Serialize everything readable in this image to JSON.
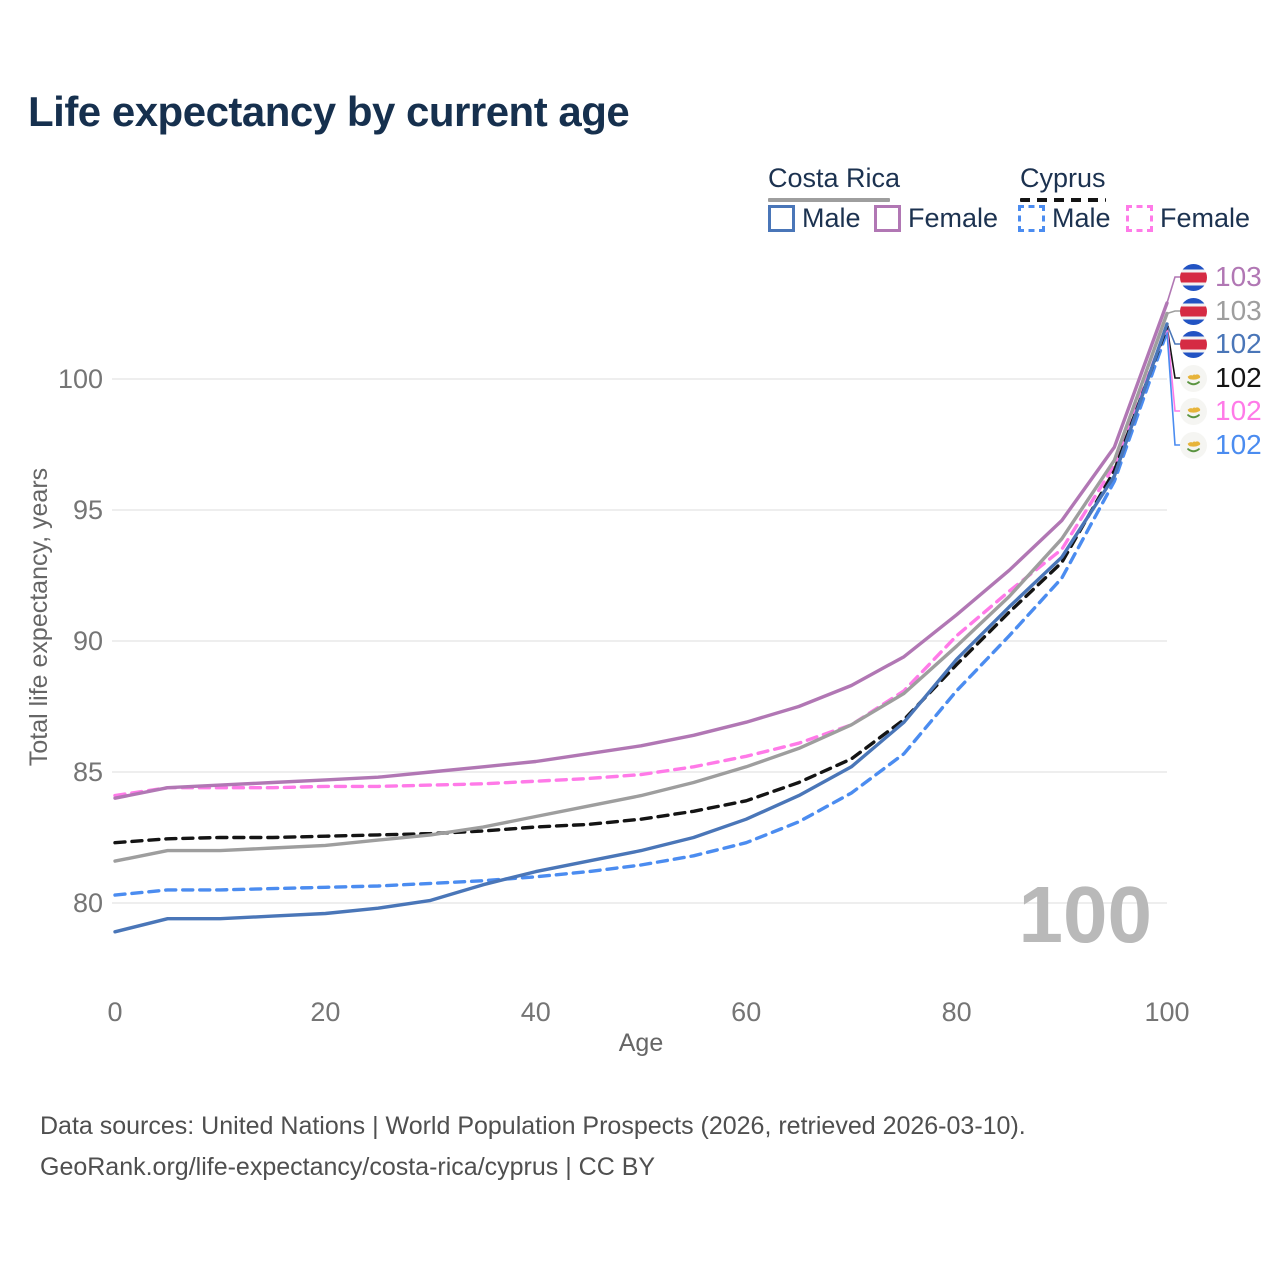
{
  "title": "Life expectancy by current age",
  "watermark": "100",
  "legend": {
    "groups": [
      {
        "label": "Costa Rica",
        "line_style": "solid",
        "underline_color": "#9e9e9e"
      },
      {
        "label": "Cyprus",
        "line_style": "dashed",
        "underline_color": "#141414"
      }
    ],
    "items": [
      {
        "label": "Male",
        "color": "#4a76b8",
        "style": "solid"
      },
      {
        "label": "Female",
        "color": "#b177b4",
        "style": "solid"
      },
      {
        "label": "Male",
        "color": "#4b8cf0",
        "style": "dashed"
      },
      {
        "label": "Female",
        "color": "#ff7ae8",
        "style": "dashed"
      }
    ]
  },
  "chart_data": {
    "type": "line",
    "title": "Life expectancy by current age",
    "xlabel": "Age",
    "ylabel": "Total life expectancy, years",
    "xlim": [
      0,
      100
    ],
    "ylim": [
      78,
      103.5
    ],
    "xticks": [
      0,
      20,
      40,
      60,
      80,
      100
    ],
    "yticks": [
      80,
      85,
      90,
      95,
      100
    ],
    "grid": "horizontal",
    "legend_position": "top-right",
    "x": [
      0,
      5,
      10,
      15,
      20,
      25,
      30,
      35,
      40,
      45,
      50,
      55,
      60,
      65,
      70,
      75,
      80,
      85,
      90,
      95,
      100
    ],
    "series": [
      {
        "id": "costa-rica-female",
        "name": "Costa Rica Female",
        "country": "Costa Rica",
        "color": "#b177b4",
        "dash": false,
        "flag": "costa-rica",
        "end_label": "103",
        "values": [
          84.0,
          84.4,
          84.5,
          84.6,
          84.7,
          84.8,
          85.0,
          85.2,
          85.4,
          85.7,
          86.0,
          86.4,
          86.9,
          87.5,
          88.3,
          89.4,
          91.0,
          92.7,
          94.6,
          97.4,
          102.9
        ]
      },
      {
        "id": "costa-rica-total",
        "name": "Costa Rica (both sexes)",
        "country": "Costa Rica",
        "color": "#9e9e9e",
        "dash": false,
        "flag": "costa-rica",
        "end_label": "103",
        "values": [
          81.6,
          82.0,
          82.0,
          82.1,
          82.2,
          82.4,
          82.6,
          82.9,
          83.3,
          83.7,
          84.1,
          84.6,
          85.2,
          85.9,
          86.8,
          88.0,
          89.8,
          91.7,
          93.9,
          96.9,
          102.5
        ]
      },
      {
        "id": "costa-rica-male",
        "name": "Costa Rica Male",
        "country": "Costa Rica",
        "color": "#4a76b8",
        "dash": false,
        "flag": "costa-rica",
        "end_label": "102",
        "values": [
          78.9,
          79.4,
          79.4,
          79.5,
          79.6,
          79.8,
          80.1,
          80.7,
          81.2,
          81.6,
          82.0,
          82.5,
          83.2,
          84.1,
          85.2,
          86.9,
          89.3,
          91.3,
          93.2,
          96.3,
          102.1
        ]
      },
      {
        "id": "cyprus-total",
        "name": "Cyprus (both sexes)",
        "country": "Cyprus",
        "color": "#141414",
        "dash": true,
        "flag": "cyprus",
        "end_label": "102",
        "values": [
          82.3,
          82.45,
          82.5,
          82.5,
          82.55,
          82.6,
          82.65,
          82.75,
          82.9,
          83.0,
          83.2,
          83.5,
          83.9,
          84.6,
          85.5,
          87.0,
          89.1,
          91.1,
          93.0,
          96.5,
          102.0
        ]
      },
      {
        "id": "cyprus-female",
        "name": "Cyprus Female",
        "country": "Cyprus",
        "color": "#ff7ae8",
        "dash": true,
        "flag": "cyprus",
        "end_label": "102",
        "values": [
          84.1,
          84.4,
          84.4,
          84.4,
          84.45,
          84.45,
          84.5,
          84.55,
          84.65,
          84.75,
          84.9,
          85.2,
          85.6,
          86.1,
          86.8,
          88.1,
          90.2,
          91.9,
          93.5,
          96.7,
          102.0
        ]
      },
      {
        "id": "cyprus-male",
        "name": "Cyprus Male",
        "country": "Cyprus",
        "color": "#4b8cf0",
        "dash": true,
        "flag": "cyprus",
        "end_label": "102",
        "values": [
          80.3,
          80.5,
          80.5,
          80.55,
          80.6,
          80.65,
          80.75,
          80.85,
          81.0,
          81.2,
          81.45,
          81.8,
          82.3,
          83.1,
          84.2,
          85.7,
          88.1,
          90.2,
          92.4,
          96.1,
          101.8
        ]
      }
    ]
  },
  "footer": {
    "line1": "Data sources: United Nations | World Population Prospects (2026, retrieved 2026-03-10).",
    "line2": "GeoRank.org/life-expectancy/costa-rica/cyprus | CC BY"
  }
}
